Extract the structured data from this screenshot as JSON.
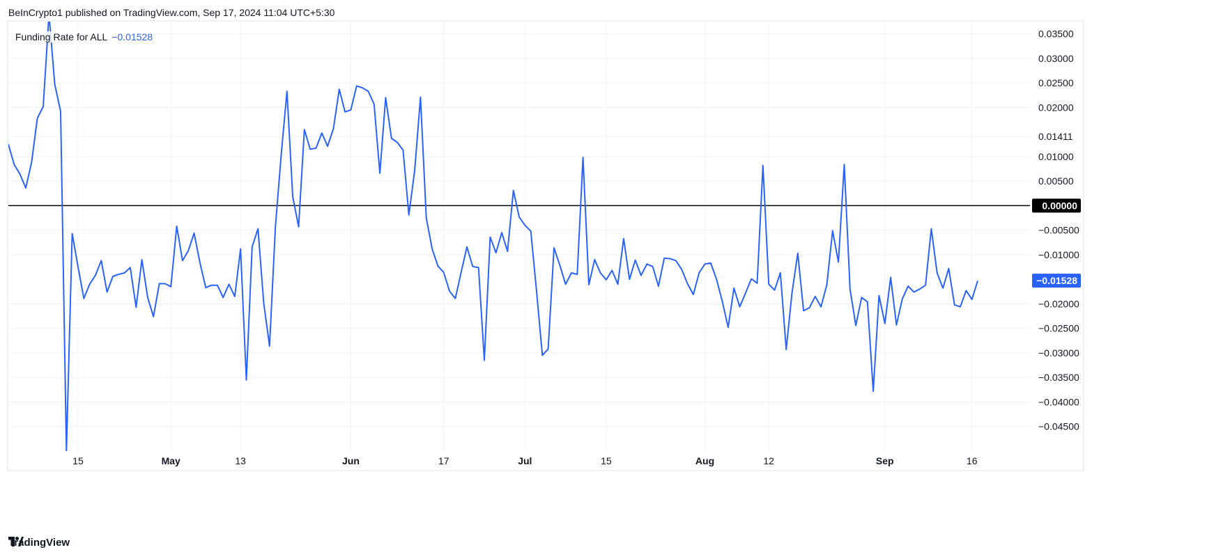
{
  "header": {
    "publisher_text": "BeInCrypto1 published on TradingView.com, Sep 17, 2024 11:04 UTC+5:30"
  },
  "legend": {
    "series_name": "Funding Rate for ALL",
    "current_value": "−0.01528"
  },
  "footer": {
    "brand": "TradingView"
  },
  "colors": {
    "series_line": "#2962ff",
    "zero_line": "#000000",
    "grid": "#f0f3fa",
    "current_badge": "#2962ff",
    "zero_badge": "#000000"
  },
  "chart_data": {
    "type": "line",
    "title": "",
    "xlabel": "",
    "ylabel": "",
    "ylim": [
      -0.05,
      0.0375
    ],
    "yticks": [
      {
        "value": 0.035,
        "label": "0.03500"
      },
      {
        "value": 0.03,
        "label": "0.03000"
      },
      {
        "value": 0.025,
        "label": "0.02500"
      },
      {
        "value": 0.02,
        "label": "0.02000"
      },
      {
        "value": 0.01411,
        "label": "0.01411"
      },
      {
        "value": 0.01,
        "label": "0.01000"
      },
      {
        "value": 0.005,
        "label": "0.00500"
      },
      {
        "value": -0.005,
        "label": "−0.00500"
      },
      {
        "value": -0.01,
        "label": "−0.01000"
      },
      {
        "value": -0.02,
        "label": "−0.02000"
      },
      {
        "value": -0.025,
        "label": "−0.02500"
      },
      {
        "value": -0.03,
        "label": "−0.03000"
      },
      {
        "value": -0.035,
        "label": "−0.03500"
      },
      {
        "value": -0.04,
        "label": "−0.04000"
      },
      {
        "value": -0.045,
        "label": "−0.04500"
      }
    ],
    "zero_badge_label": "0.00000",
    "current_badge_label": "−0.01528",
    "current_value": -0.01528,
    "x_range": [
      "2024-04-03",
      "2024-09-26"
    ],
    "xticks": [
      {
        "date": "2024-04-15",
        "label": "15",
        "month": false
      },
      {
        "date": "2024-05-01",
        "label": "May",
        "month": true
      },
      {
        "date": "2024-05-13",
        "label": "13",
        "month": false
      },
      {
        "date": "2024-06-01",
        "label": "Jun",
        "month": true
      },
      {
        "date": "2024-06-17",
        "label": "17",
        "month": false
      },
      {
        "date": "2024-07-01",
        "label": "Jul",
        "month": true
      },
      {
        "date": "2024-07-15",
        "label": "15",
        "month": false
      },
      {
        "date": "2024-08-01",
        "label": "Aug",
        "month": true
      },
      {
        "date": "2024-08-12",
        "label": "12",
        "month": false
      },
      {
        "date": "2024-09-01",
        "label": "Sep",
        "month": true
      },
      {
        "date": "2024-09-16",
        "label": "16",
        "month": false
      }
    ],
    "grid": true,
    "series": [
      {
        "color": "#2962ff",
        "points": [
          [
            "2024-04-03",
            0.0125
          ],
          [
            "2024-04-04",
            0.0084
          ],
          [
            "2024-04-05",
            0.0064
          ],
          [
            "2024-04-06",
            0.0036
          ],
          [
            "2024-04-07",
            0.0088
          ],
          [
            "2024-04-08",
            0.0178
          ],
          [
            "2024-04-09",
            0.0202
          ],
          [
            "2024-04-10",
            0.039
          ],
          [
            "2024-04-11",
            0.0247
          ],
          [
            "2024-04-12",
            0.0192
          ],
          [
            "2024-04-13",
            -0.05
          ],
          [
            "2024-04-14",
            -0.0057
          ],
          [
            "2024-04-15",
            -0.0125
          ],
          [
            "2024-04-16",
            -0.0189
          ],
          [
            "2024-04-17",
            -0.016
          ],
          [
            "2024-04-18",
            -0.0142
          ],
          [
            "2024-04-19",
            -0.0112
          ],
          [
            "2024-04-20",
            -0.0176
          ],
          [
            "2024-04-21",
            -0.0144
          ],
          [
            "2024-04-22",
            -0.014
          ],
          [
            "2024-04-23",
            -0.0137
          ],
          [
            "2024-04-24",
            -0.0126
          ],
          [
            "2024-04-25",
            -0.0207
          ],
          [
            "2024-04-26",
            -0.011
          ],
          [
            "2024-04-27",
            -0.0187
          ],
          [
            "2024-04-28",
            -0.0226
          ],
          [
            "2024-04-29",
            -0.0159
          ],
          [
            "2024-04-30",
            -0.0159
          ],
          [
            "2024-05-01",
            -0.0165
          ],
          [
            "2024-05-02",
            -0.0042
          ],
          [
            "2024-05-03",
            -0.0112
          ],
          [
            "2024-05-04",
            -0.0092
          ],
          [
            "2024-05-05",
            -0.0056
          ],
          [
            "2024-05-06",
            -0.0116
          ],
          [
            "2024-05-07",
            -0.0167
          ],
          [
            "2024-05-08",
            -0.0162
          ],
          [
            "2024-05-09",
            -0.0162
          ],
          [
            "2024-05-10",
            -0.0187
          ],
          [
            "2024-05-11",
            -0.016
          ],
          [
            "2024-05-12",
            -0.0185
          ],
          [
            "2024-05-13",
            -0.0088
          ],
          [
            "2024-05-14",
            -0.0355
          ],
          [
            "2024-05-15",
            -0.0084
          ],
          [
            "2024-05-16",
            -0.0047
          ],
          [
            "2024-05-17",
            -0.0199
          ],
          [
            "2024-05-18",
            -0.0286
          ],
          [
            "2024-05-19",
            -0.0043
          ],
          [
            "2024-05-20",
            0.0103
          ],
          [
            "2024-05-21",
            0.0233
          ],
          [
            "2024-05-22",
            0.0018
          ],
          [
            "2024-05-23",
            -0.0043
          ],
          [
            "2024-05-24",
            0.0155
          ],
          [
            "2024-05-25",
            0.0115
          ],
          [
            "2024-05-26",
            0.0117
          ],
          [
            "2024-05-27",
            0.0148
          ],
          [
            "2024-05-28",
            0.0121
          ],
          [
            "2024-05-29",
            0.0157
          ],
          [
            "2024-05-30",
            0.0237
          ],
          [
            "2024-05-31",
            0.0191
          ],
          [
            "2024-06-01",
            0.0195
          ],
          [
            "2024-06-02",
            0.0244
          ],
          [
            "2024-06-03",
            0.024
          ],
          [
            "2024-06-04",
            0.0233
          ],
          [
            "2024-06-05",
            0.0207
          ],
          [
            "2024-06-06",
            0.0066
          ],
          [
            "2024-06-07",
            0.022
          ],
          [
            "2024-06-08",
            0.0137
          ],
          [
            "2024-06-09",
            0.0129
          ],
          [
            "2024-06-10",
            0.0113
          ],
          [
            "2024-06-11",
            -0.0019
          ],
          [
            "2024-06-12",
            0.0072
          ],
          [
            "2024-06-13",
            0.0221
          ],
          [
            "2024-06-14",
            -0.0025
          ],
          [
            "2024-06-15",
            -0.0088
          ],
          [
            "2024-06-16",
            -0.0123
          ],
          [
            "2024-06-17",
            -0.0136
          ],
          [
            "2024-06-18",
            -0.0174
          ],
          [
            "2024-06-19",
            -0.0189
          ],
          [
            "2024-06-20",
            -0.0136
          ],
          [
            "2024-06-21",
            -0.0084
          ],
          [
            "2024-06-22",
            -0.0124
          ],
          [
            "2024-06-23",
            -0.0126
          ],
          [
            "2024-06-24",
            -0.0315
          ],
          [
            "2024-06-25",
            -0.0064
          ],
          [
            "2024-06-26",
            -0.0096
          ],
          [
            "2024-06-27",
            -0.0055
          ],
          [
            "2024-06-28",
            -0.0093
          ],
          [
            "2024-06-29",
            0.0031
          ],
          [
            "2024-06-30",
            -0.0023
          ],
          [
            "2024-07-01",
            -0.004
          ],
          [
            "2024-07-02",
            -0.0052
          ],
          [
            "2024-07-03",
            -0.0175
          ],
          [
            "2024-07-04",
            -0.0305
          ],
          [
            "2024-07-05",
            -0.0292
          ],
          [
            "2024-07-06",
            -0.0086
          ],
          [
            "2024-07-07",
            -0.0121
          ],
          [
            "2024-07-08",
            -0.016
          ],
          [
            "2024-07-09",
            -0.0137
          ],
          [
            "2024-07-10",
            -0.014
          ],
          [
            "2024-07-11",
            0.0098
          ],
          [
            "2024-07-12",
            -0.0161
          ],
          [
            "2024-07-13",
            -0.011
          ],
          [
            "2024-07-14",
            -0.0137
          ],
          [
            "2024-07-15",
            -0.0151
          ],
          [
            "2024-07-16",
            -0.0132
          ],
          [
            "2024-07-17",
            -0.016
          ],
          [
            "2024-07-18",
            -0.0067
          ],
          [
            "2024-07-19",
            -0.015
          ],
          [
            "2024-07-20",
            -0.0111
          ],
          [
            "2024-07-21",
            -0.0142
          ],
          [
            "2024-07-22",
            -0.0119
          ],
          [
            "2024-07-23",
            -0.0124
          ],
          [
            "2024-07-24",
            -0.0164
          ],
          [
            "2024-07-25",
            -0.0107
          ],
          [
            "2024-07-26",
            -0.0108
          ],
          [
            "2024-07-27",
            -0.0112
          ],
          [
            "2024-07-28",
            -0.013
          ],
          [
            "2024-07-29",
            -0.0159
          ],
          [
            "2024-07-30",
            -0.0181
          ],
          [
            "2024-07-31",
            -0.0137
          ],
          [
            "2024-08-01",
            -0.0119
          ],
          [
            "2024-08-02",
            -0.0117
          ],
          [
            "2024-08-03",
            -0.015
          ],
          [
            "2024-08-04",
            -0.0195
          ],
          [
            "2024-08-05",
            -0.0248
          ],
          [
            "2024-08-06",
            -0.0168
          ],
          [
            "2024-08-07",
            -0.0206
          ],
          [
            "2024-08-08",
            -0.0178
          ],
          [
            "2024-08-09",
            -0.0149
          ],
          [
            "2024-08-10",
            -0.0158
          ],
          [
            "2024-08-11",
            0.0082
          ],
          [
            "2024-08-12",
            -0.016
          ],
          [
            "2024-08-13",
            -0.0172
          ],
          [
            "2024-08-14",
            -0.0137
          ],
          [
            "2024-08-15",
            -0.0293
          ],
          [
            "2024-08-16",
            -0.0178
          ],
          [
            "2024-08-17",
            -0.0097
          ],
          [
            "2024-08-18",
            -0.0214
          ],
          [
            "2024-08-19",
            -0.0208
          ],
          [
            "2024-08-20",
            -0.0185
          ],
          [
            "2024-08-21",
            -0.0206
          ],
          [
            "2024-08-22",
            -0.0161
          ],
          [
            "2024-08-23",
            -0.0051
          ],
          [
            "2024-08-24",
            -0.0115
          ],
          [
            "2024-08-25",
            0.0084
          ],
          [
            "2024-08-26",
            -0.017
          ],
          [
            "2024-08-27",
            -0.0244
          ],
          [
            "2024-08-28",
            -0.0187
          ],
          [
            "2024-08-29",
            -0.0196
          ],
          [
            "2024-08-30",
            -0.0378
          ],
          [
            "2024-08-31",
            -0.0183
          ],
          [
            "2024-09-01",
            -0.024
          ],
          [
            "2024-09-02",
            -0.0146
          ],
          [
            "2024-09-03",
            -0.0243
          ],
          [
            "2024-09-04",
            -0.019
          ],
          [
            "2024-09-05",
            -0.0164
          ],
          [
            "2024-09-06",
            -0.0176
          ],
          [
            "2024-09-07",
            -0.017
          ],
          [
            "2024-09-08",
            -0.0162
          ],
          [
            "2024-09-09",
            -0.0047
          ],
          [
            "2024-09-10",
            -0.0137
          ],
          [
            "2024-09-11",
            -0.0168
          ],
          [
            "2024-09-12",
            -0.0128
          ],
          [
            "2024-09-13",
            -0.0202
          ],
          [
            "2024-09-14",
            -0.0206
          ],
          [
            "2024-09-15",
            -0.0173
          ],
          [
            "2024-09-16",
            -0.0191
          ],
          [
            "2024-09-17",
            -0.0153
          ]
        ]
      }
    ]
  }
}
